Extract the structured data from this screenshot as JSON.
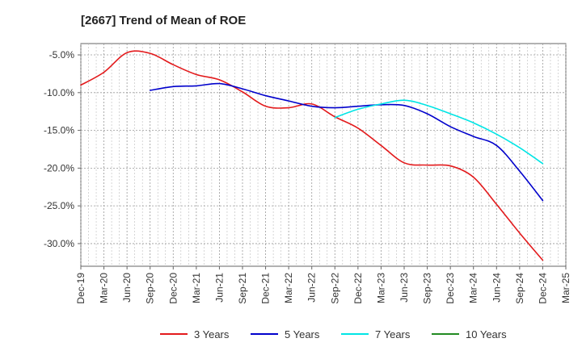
{
  "chart_data": {
    "type": "line",
    "title": "[2667]  Trend of Mean of ROE",
    "xlabel": "",
    "ylabel": "",
    "x_ticks": [
      "Dec-19",
      "Mar-20",
      "Jun-20",
      "Sep-20",
      "Dec-20",
      "Mar-21",
      "Jun-21",
      "Sep-21",
      "Dec-21",
      "Mar-22",
      "Jun-22",
      "Sep-22",
      "Dec-22",
      "Mar-23",
      "Jun-23",
      "Sep-23",
      "Dec-23",
      "Mar-24",
      "Jun-24",
      "Sep-24",
      "Dec-24",
      "Mar-25"
    ],
    "y_ticks": [
      -5.0,
      -10.0,
      -15.0,
      -20.0,
      -25.0,
      -30.0
    ],
    "y_tick_labels": [
      "-5.0%",
      "-10.0%",
      "-15.0%",
      "-20.0%",
      "-25.0%",
      "-30.0%"
    ],
    "ylim": [
      -33.0,
      -3.5
    ],
    "grid": true,
    "legend_position": "bottom",
    "series": [
      {
        "name": "3 Years",
        "color": "#e31a1c",
        "x": [
          "Dec-19",
          "Mar-20",
          "Jun-20",
          "Sep-20",
          "Dec-20",
          "Mar-21",
          "Jun-21",
          "Sep-21",
          "Dec-21",
          "Mar-22",
          "Jun-22",
          "Sep-22",
          "Dec-22",
          "Mar-23",
          "Jun-23",
          "Sep-23",
          "Dec-23",
          "Mar-24",
          "Jun-24",
          "Sep-24",
          "Dec-24"
        ],
        "values": [
          -9.0,
          -7.3,
          -4.7,
          -4.8,
          -6.3,
          -7.6,
          -8.3,
          -9.9,
          -11.8,
          -12.0,
          -11.5,
          -13.2,
          -14.7,
          -17.0,
          -19.3,
          -19.6,
          -19.7,
          -21.2,
          -24.8,
          -28.6,
          -32.2
        ]
      },
      {
        "name": "5 Years",
        "color": "#0000cc",
        "x": [
          "Sep-20",
          "Dec-20",
          "Mar-21",
          "Jun-21",
          "Sep-21",
          "Dec-21",
          "Mar-22",
          "Jun-22",
          "Sep-22",
          "Dec-22",
          "Mar-23",
          "Jun-23",
          "Sep-23",
          "Dec-23",
          "Mar-24",
          "Jun-24",
          "Sep-24",
          "Dec-24"
        ],
        "values": [
          -9.7,
          -9.2,
          -9.1,
          -8.8,
          -9.5,
          -10.4,
          -11.1,
          -11.8,
          -12.0,
          -11.8,
          -11.6,
          -11.7,
          -12.8,
          -14.5,
          -15.8,
          -17.0,
          -20.4,
          -24.3
        ]
      },
      {
        "name": "7 Years",
        "color": "#00e5e5",
        "x": [
          "Sep-22",
          "Dec-22",
          "Mar-23",
          "Jun-23",
          "Sep-23",
          "Dec-23",
          "Mar-24",
          "Jun-24",
          "Sep-24",
          "Dec-24"
        ],
        "values": [
          -13.3,
          -12.2,
          -11.5,
          -11.0,
          -11.7,
          -12.8,
          -14.0,
          -15.5,
          -17.3,
          -19.4
        ]
      },
      {
        "name": "10 Years",
        "color": "#228b22",
        "x": [],
        "values": []
      }
    ]
  }
}
